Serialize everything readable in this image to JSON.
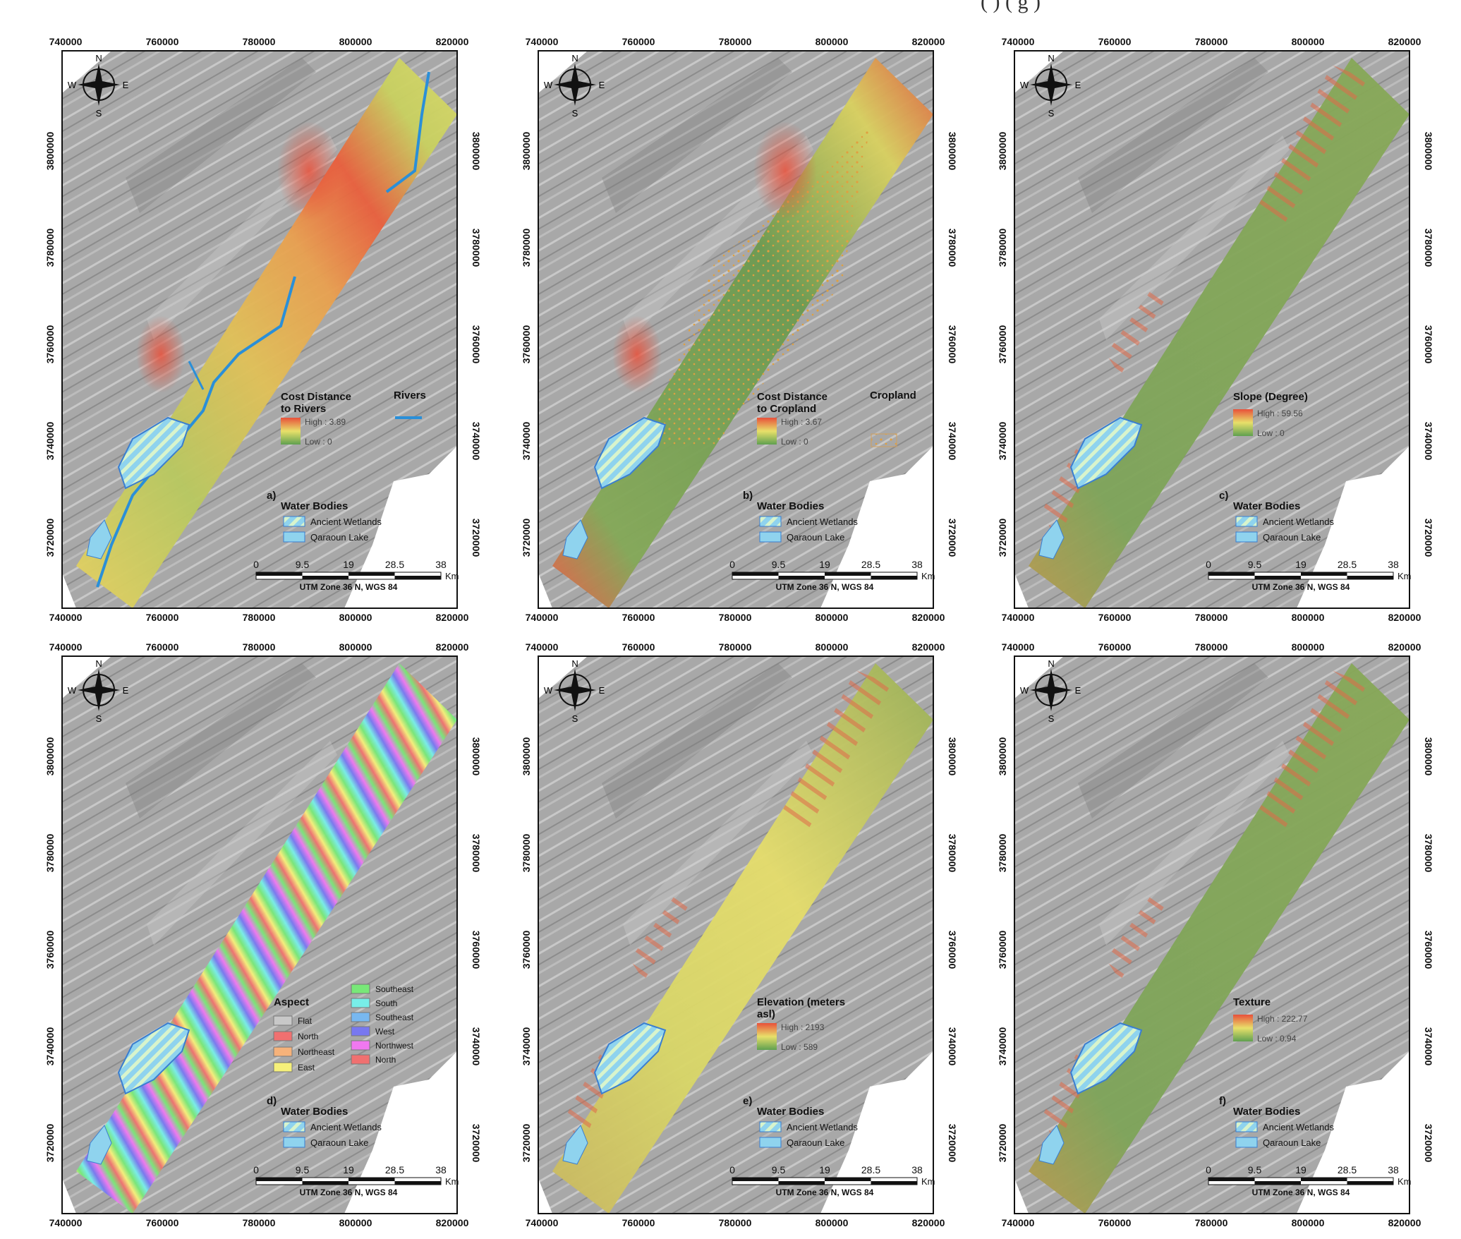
{
  "header_fragment": "( ) ( g )",
  "axes": {
    "x_ticks": [
      "740000",
      "760000",
      "780000",
      "800000",
      "820000"
    ],
    "y_ticks": [
      "3720000",
      "3740000",
      "3760000",
      "3780000",
      "3800000"
    ]
  },
  "compass": {
    "n": "N",
    "s": "S",
    "e": "E",
    "w": "W"
  },
  "scale_bar": {
    "ticks": [
      "0",
      "9.5",
      "19",
      "28.5",
      "38"
    ],
    "unit": "Km",
    "projection": "UTM Zone 36 N, WGS 84"
  },
  "water_bodies": {
    "title": "Water Bodies",
    "wetlands": "Ancient Wetlands",
    "lake": "Qaraoun Lake"
  },
  "colors": {
    "high": "#e8503a",
    "mid": "#e8e06a",
    "low": "#5fa050",
    "water": "#8fd3ee",
    "river": "#2a8fd8",
    "hillshade": "#a8a8a8"
  },
  "panels": [
    {
      "label": "a)",
      "legend_title": "Cost Distance to Rivers",
      "high": "High : 3.89",
      "low": "Low : 0",
      "extra_title": "Rivers",
      "style": "rivers"
    },
    {
      "label": "b)",
      "legend_title": "Cost Distance to Cropland",
      "high": "High : 3.67",
      "low": "Low : 0",
      "extra_title": "Cropland",
      "style": "cropland"
    },
    {
      "label": "c)",
      "legend_title": "Slope (Degree)",
      "high": "High : 59.56",
      "low": "Low : 0",
      "style": "slope"
    },
    {
      "label": "d)",
      "legend_title": "Aspect",
      "style": "aspect",
      "aspect_classes": [
        {
          "name": "Flat",
          "color": "#c8c8c8"
        },
        {
          "name": "North",
          "color": "#f07070"
        },
        {
          "name": "Northeast",
          "color": "#f6b27a"
        },
        {
          "name": "East",
          "color": "#f6f07a"
        },
        {
          "name": "Southeast",
          "color": "#78e878"
        },
        {
          "name": "South",
          "color": "#78eee8"
        },
        {
          "name": "Southeast",
          "color": "#78b8f0"
        },
        {
          "name": "West",
          "color": "#7878f0"
        },
        {
          "name": "Northwest",
          "color": "#f078f0"
        },
        {
          "name": "North",
          "color": "#f07070"
        }
      ]
    },
    {
      "label": "e)",
      "legend_title": "Elevation (meters asl)",
      "high": "High : 2193",
      "low": "Low : 589",
      "style": "elevation"
    },
    {
      "label": "f)",
      "legend_title": "Texture",
      "high": "High : 222.77",
      "low": "Low : 0.94",
      "style": "texture"
    }
  ]
}
